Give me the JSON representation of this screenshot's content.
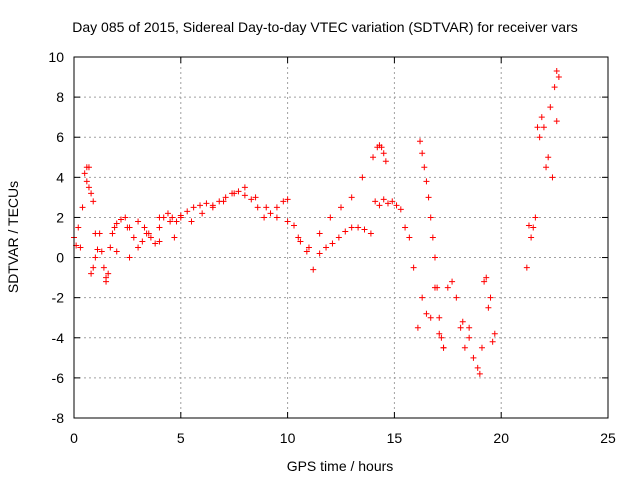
{
  "chart_data": {
    "type": "scatter",
    "title": "Day 085 of 2015, Sidereal Day-to-day VTEC variation (SDTVAR) for receiver vars",
    "xlabel": "GPS time / hours",
    "ylabel": "SDTVAR / TECUs",
    "xlim": [
      0,
      25
    ],
    "ylim": [
      -8,
      10
    ],
    "xticks": [
      0,
      5,
      10,
      15,
      20,
      25
    ],
    "yticks": [
      -8,
      -6,
      -4,
      -2,
      0,
      2,
      4,
      6,
      8,
      10
    ],
    "xtick_labels": [
      "0",
      "5",
      "10",
      "15",
      "20",
      "25"
    ],
    "ytick_labels": [
      "-8",
      "-6",
      "-4",
      "-2",
      "0",
      "2",
      "4",
      "6",
      "8",
      "10"
    ],
    "grid": true,
    "marker": "+",
    "color": "#ff0000",
    "series": [
      {
        "name": "vars",
        "x": [
          0.0,
          0.1,
          0.2,
          0.3,
          0.4,
          0.5,
          0.6,
          0.7,
          0.8,
          0.9,
          1.0,
          1.1,
          1.2,
          1.3,
          1.4,
          1.5,
          1.6,
          1.7,
          1.8,
          1.9,
          2.0,
          2.2,
          2.4,
          2.6,
          2.8,
          3.0,
          3.2,
          3.4,
          3.6,
          3.8,
          4.0,
          4.2,
          4.4,
          4.6,
          4.8,
          5.0,
          5.3,
          5.6,
          5.9,
          6.2,
          6.5,
          6.8,
          7.1,
          7.4,
          7.7,
          8.0,
          8.3,
          8.6,
          8.9,
          9.2,
          9.5,
          9.8,
          10.0,
          10.3,
          10.6,
          10.9,
          11.2,
          11.5,
          11.8,
          12.1,
          12.4,
          12.7,
          13.0,
          13.3,
          13.6,
          13.9,
          14.1,
          14.3,
          14.5,
          14.7,
          14.9,
          15.1,
          15.3,
          15.5,
          15.7,
          15.9,
          16.1,
          16.3,
          16.5,
          16.7,
          16.9,
          17.1,
          17.3,
          17.5,
          17.7,
          17.9,
          18.1,
          18.3,
          18.5,
          18.7,
          18.9,
          19.1,
          19.3,
          19.5,
          19.7,
          21.2,
          21.4,
          21.6,
          21.8,
          22.0,
          22.2,
          22.4,
          22.6,
          1.5,
          2.0,
          2.5,
          3.0,
          3.5,
          4.0,
          4.5,
          5.0,
          5.5,
          6.0,
          6.5,
          7.0,
          7.5,
          8.0,
          8.5,
          9.0,
          9.5,
          10.0,
          10.5,
          11.0,
          11.5,
          12.0,
          12.5,
          13.0,
          13.5,
          14.0,
          14.2,
          14.3,
          14.4,
          14.5,
          14.6,
          16.2,
          16.3,
          16.4,
          16.5,
          16.6,
          16.7,
          16.8,
          16.9,
          17.0,
          17.1,
          17.2,
          17.3,
          18.2,
          18.5,
          19.0,
          19.2,
          19.4,
          19.6,
          21.3,
          21.5,
          21.7,
          21.9,
          22.1,
          22.3,
          22.5,
          22.6,
          22.7,
          0.6,
          0.7,
          0.8,
          0.9,
          1.0,
          2.6,
          3.3,
          4.0,
          4.7
        ],
        "y": [
          1.0,
          0.6,
          1.5,
          0.5,
          2.5,
          4.2,
          4.5,
          3.5,
          -0.8,
          -0.5,
          0.0,
          0.4,
          1.2,
          0.3,
          -0.5,
          -1.2,
          -0.8,
          0.5,
          1.2,
          1.5,
          1.7,
          1.9,
          2.0,
          1.5,
          1.0,
          0.5,
          0.8,
          1.2,
          1.0,
          0.7,
          1.5,
          2.0,
          2.2,
          2.0,
          1.8,
          2.1,
          2.3,
          2.5,
          2.6,
          2.7,
          2.6,
          2.8,
          3.0,
          3.2,
          3.3,
          3.1,
          2.9,
          2.5,
          2.0,
          2.2,
          2.5,
          2.8,
          2.9,
          1.6,
          0.8,
          0.3,
          -0.6,
          0.2,
          0.5,
          0.7,
          1.0,
          1.3,
          1.5,
          1.5,
          1.4,
          1.2,
          2.8,
          2.6,
          2.9,
          2.7,
          2.8,
          2.6,
          2.4,
          1.5,
          1.0,
          -0.5,
          -3.5,
          -2.0,
          -2.8,
          -3.0,
          -1.5,
          -3.8,
          -4.5,
          -1.5,
          -1.2,
          -2.0,
          -3.5,
          -4.5,
          -3.5,
          -5.0,
          -5.5,
          -4.5,
          -1.0,
          -2.0,
          -3.8,
          -0.5,
          1.0,
          2.0,
          6.0,
          6.5,
          5.0,
          4.0,
          6.8,
          -1.0,
          0.3,
          1.5,
          1.8,
          1.2,
          0.8,
          1.8,
          2.0,
          1.8,
          2.2,
          2.5,
          2.8,
          3.2,
          3.5,
          3.0,
          2.5,
          2.0,
          1.8,
          1.0,
          0.5,
          1.2,
          2.0,
          2.5,
          3.0,
          4.0,
          5.0,
          5.5,
          5.6,
          5.5,
          5.2,
          4.8,
          5.8,
          5.2,
          4.5,
          3.8,
          3.0,
          2.0,
          1.0,
          0.0,
          -1.5,
          -3.0,
          -4.0,
          -4.5,
          -3.2,
          -4.0,
          -5.8,
          -1.2,
          -2.5,
          -4.2,
          1.6,
          1.5,
          6.5,
          7.0,
          4.5,
          7.5,
          8.5,
          9.3,
          9.0,
          3.8,
          4.5,
          3.2,
          2.8,
          1.2,
          0.0,
          1.5,
          2.0,
          1.0
        ]
      }
    ]
  }
}
